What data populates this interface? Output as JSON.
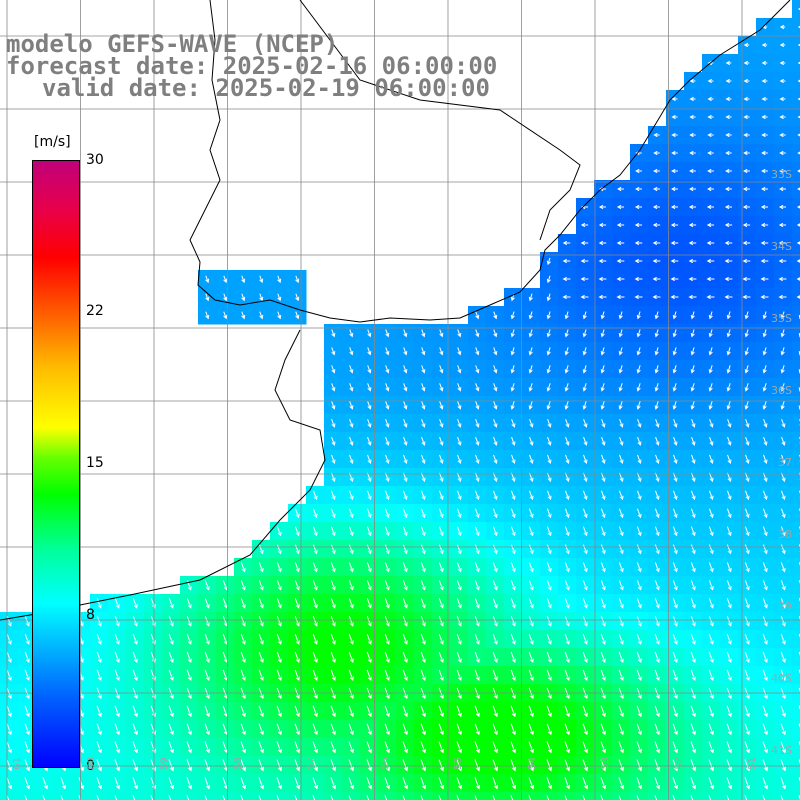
{
  "titles": {
    "model": "modelo GEFS-WAVE (NCEP)",
    "forecast": "forecast date: 2025-02-16 06:00:00",
    "valid": "valid date: 2025-02-19 06:00:00"
  },
  "colorbar": {
    "units": "[m/s]",
    "ticks": [
      "30",
      "22",
      "15",
      "8",
      "0"
    ],
    "tick_values": [
      30,
      22,
      15,
      8,
      0
    ],
    "range": [
      0,
      30
    ],
    "colors": [
      "#0000ff",
      "#00ffff",
      "#00ff00",
      "#ffff00",
      "#ff0000",
      "#c0007a"
    ]
  },
  "lat_labels": [
    "33S",
    "34S",
    "35S",
    "36S",
    "37",
    "38",
    "39",
    "40S",
    "41S"
  ],
  "lon_labels": [
    "61",
    "60",
    "59",
    "58",
    "57",
    "56",
    "55",
    "54",
    "53",
    "52",
    "51"
  ],
  "colors": {
    "land": "#ffffff",
    "coast": "#000000",
    "grid": "#888888",
    "title": "#7f7f7f",
    "arrows": "#ffffff"
  }
}
